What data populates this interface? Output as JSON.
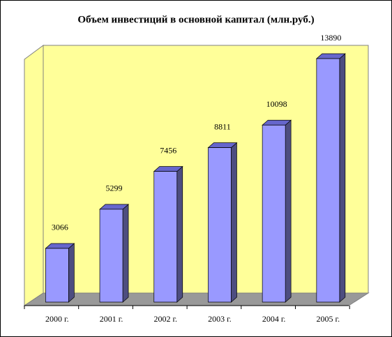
{
  "chart_data": {
    "type": "bar3d",
    "title": "Объем инвестиций в основной капитал (млн.руб.)",
    "categories": [
      "2000 г.",
      "2001 г.",
      "2002 г.",
      "2003 г.",
      "2004 г.",
      "2005 г."
    ],
    "values": [
      3066,
      5299,
      7456,
      8811,
      10098,
      13890
    ],
    "color": "#9999ff"
  }
}
